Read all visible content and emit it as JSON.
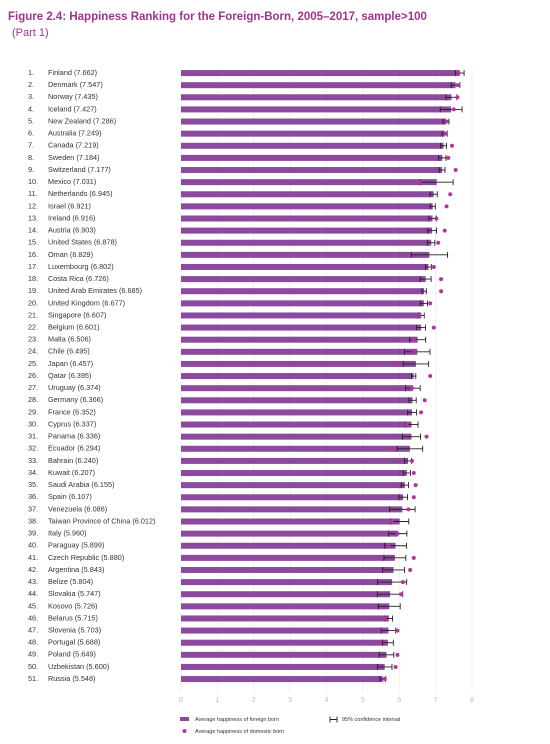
{
  "chart_data": {
    "type": "hbar-errorbar",
    "title": "Figure 2.4: Happiness Ranking for the Foreign-Born, 2005–2017, sample>100",
    "subtitle": "(Part 1)",
    "ranks": [
      "1.",
      "2.",
      "3.",
      "4.",
      "5.",
      "6.",
      "7.",
      "8.",
      "9.",
      "10.",
      "11.",
      "12.",
      "13.",
      "14.",
      "15.",
      "16.",
      "17.",
      "18.",
      "19.",
      "20.",
      "21.",
      "22.",
      "23.",
      "24.",
      "25.",
      "26.",
      "27.",
      "28.",
      "29.",
      "30.",
      "31.",
      "32.",
      "33.",
      "34.",
      "35.",
      "36.",
      "37.",
      "38.",
      "39.",
      "40.",
      "41.",
      "42.",
      "43.",
      "44.",
      "45.",
      "46.",
      "47.",
      "48.",
      "49.",
      "50.",
      "51."
    ],
    "categories": [
      "Finland (7.662)",
      "Denmark (7.547)",
      "Norway (7.435)",
      "Iceland (7.427)",
      "New Zealand (7.286)",
      "Australia (7.249)",
      "Canada (7.219)",
      "Sweden (7.184)",
      "Switzerland (7.177)",
      "Mexico (7.031)",
      "Netherlands (6.945)",
      "Israel (6.921)",
      "Ireland (6.916)",
      "Austria (6.903)",
      "United States (6.878)",
      "Oman (6.829)",
      "Luxembourg (6.802)",
      "Costa Rica (6.726)",
      "United Arab Emirates (6.685)",
      "United Kingdom (6.677)",
      "Singapore (6.607)",
      "Belgium (6.601)",
      "Malta (6.506)",
      "Chile (6.495)",
      "Japan (6.457)",
      "Qatar (6.395)",
      "Uruguay (6.374)",
      "Germany (6.366)",
      "France (6.352)",
      "Cyprus (6.337)",
      "Panama (6.336)",
      "Ecuador (6.294)",
      "Bahrain (6.240)",
      "Kuwait (6.207)",
      "Saudi Arabia (6.155)",
      "Spain (6.107)",
      "Venezuela (6.086)",
      "Taiwan Province of China (6.012)",
      "Italy (5.960)",
      "Paraguay (5.899)",
      "Czech Republic (5.880)",
      "Argentina (5.843)",
      "Belize (5.804)",
      "Slovakia (5.747)",
      "Kosovo (5.726)",
      "Belarus (5.715)",
      "Slovenia (5.703)",
      "Portugal (5.688)",
      "Poland (5.649)",
      "Uzbekistan (5.600)",
      "Russia (5.548)"
    ],
    "series": [
      {
        "name": "Average happiness of foreign born",
        "color": "#8b4a9e",
        "values": [
          7.662,
          7.547,
          7.435,
          7.427,
          7.286,
          7.249,
          7.219,
          7.184,
          7.177,
          7.031,
          6.945,
          6.921,
          6.916,
          6.903,
          6.878,
          6.829,
          6.802,
          6.726,
          6.685,
          6.677,
          6.607,
          6.601,
          6.506,
          6.495,
          6.457,
          6.395,
          6.374,
          6.366,
          6.352,
          6.337,
          6.336,
          6.294,
          6.24,
          6.207,
          6.155,
          6.107,
          6.086,
          6.012,
          5.96,
          5.899,
          5.88,
          5.843,
          5.804,
          5.747,
          5.726,
          5.715,
          5.703,
          5.688,
          5.649,
          5.6,
          5.548
        ],
        "errors": [
          0.12,
          0.12,
          0.15,
          0.3,
          0.08,
          0.07,
          0.08,
          0.1,
          0.08,
          0.45,
          0.1,
          0.07,
          0.1,
          0.12,
          0.1,
          0.5,
          0.08,
          0.15,
          0.06,
          0.1,
          0.08,
          0.12,
          0.22,
          0.35,
          0.35,
          0.06,
          0.2,
          0.1,
          0.12,
          0.18,
          0.25,
          0.35,
          0.1,
          0.1,
          0.1,
          0.12,
          0.35,
          0.25,
          0.25,
          0.3,
          0.3,
          0.3,
          0.4,
          0.35,
          0.3,
          0.1,
          0.2,
          0.15,
          0.2,
          0.2,
          0.08
        ]
      },
      {
        "name": "Average happiness of domestic born",
        "color": "#b8329f",
        "values": [
          7.63,
          7.6,
          7.6,
          7.5,
          7.3,
          7.28,
          7.45,
          7.35,
          7.55,
          6.55,
          7.4,
          7.3,
          7.02,
          7.25,
          7.07,
          null,
          6.95,
          7.15,
          7.15,
          6.85,
          6.55,
          6.95,
          6.4,
          6.4,
          5.95,
          6.85,
          6.35,
          6.7,
          6.6,
          6.2,
          6.75,
          5.85,
          6.35,
          6.4,
          6.45,
          6.4,
          6.25,
          5.8,
          5.95,
          5.7,
          6.4,
          6.3,
          6.1,
          6.05,
          null,
          5.6,
          5.95,
          5.45,
          5.95,
          5.9,
          5.6
        ]
      }
    ],
    "ci_label": "95% confidence interval",
    "error_color": "#222222",
    "xlim": [
      0,
      8
    ],
    "xticks": [
      0,
      1,
      2,
      3,
      4,
      5,
      6,
      7,
      8
    ],
    "grid": true
  }
}
